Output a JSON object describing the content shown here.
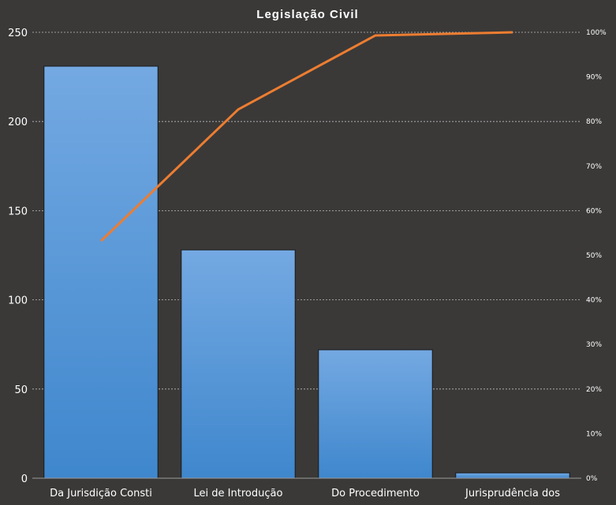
{
  "chart_data": {
    "type": "bar",
    "title": "Legislação  Civil",
    "categories": [
      "Da Jurisdição Consti",
      "Lei de Introdução",
      "Do Procedimento",
      "Jurisprudência dos"
    ],
    "series": [
      {
        "type": "bar",
        "values": [
          231,
          128,
          72,
          3
        ]
      },
      {
        "type": "line",
        "axis": "secondary",
        "values": [
          53.2,
          82.7,
          99.3,
          100
        ]
      }
    ],
    "yticks": [
      "0",
      "50",
      "100",
      "150",
      "200",
      "250"
    ],
    "ylim": [
      0,
      250
    ],
    "y2ticks": [
      "0%",
      "10%",
      "20%",
      "30%",
      "40%",
      "50%",
      "60%",
      "70%",
      "80%",
      "90%",
      "100%"
    ],
    "y2lim": [
      0,
      100
    ],
    "grid": true,
    "colors": {
      "bar": "#4a90d9",
      "line": "#ed7d31",
      "background": "#3a3938"
    }
  }
}
